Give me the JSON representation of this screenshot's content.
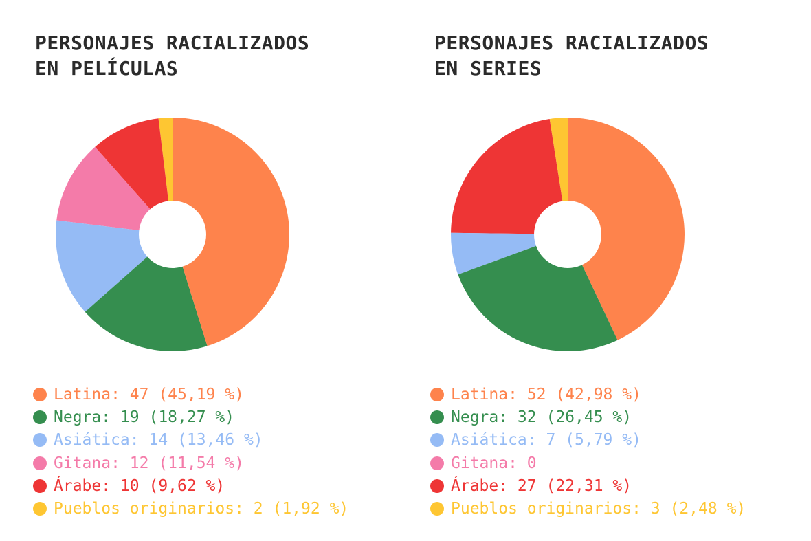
{
  "colors": {
    "Latina": "#fe834c",
    "Negra": "#358e4f",
    "Asiática": "#95bbf5",
    "Gitana": "#f47ba9",
    "Árabe": "#ee3535",
    "Pueblos originarios": "#fec632"
  },
  "chart_data": [
    {
      "type": "pie",
      "style": "donut",
      "title": [
        "PERSONAJES RACIALIZADOS",
        "EN PELÍCULAS"
      ],
      "categories": [
        "Latina",
        "Negra",
        "Asiática",
        "Gitana",
        "Árabe",
        "Pueblos originarios"
      ],
      "values": [
        47,
        19,
        14,
        12,
        10,
        2
      ],
      "legend_labels": [
        "Latina: 47 (45,19 %)",
        "Negra: 19 (18,27 %)",
        "Asiática: 14 (13,46 %)",
        "Gitana: 12 (11,54 %)",
        "Árabe: 10 (9,62 %)",
        "Pueblos originarios: 2 (1,92 %)"
      ],
      "legend_position": "bottom"
    },
    {
      "type": "pie",
      "style": "donut",
      "title": [
        "PERSONAJES RACIALIZADOS",
        "EN SERIES"
      ],
      "categories": [
        "Latina",
        "Negra",
        "Asiática",
        "Gitana",
        "Árabe",
        "Pueblos originarios"
      ],
      "values": [
        52,
        32,
        7,
        0,
        27,
        3
      ],
      "legend_labels": [
        "Latina: 52 (42,98 %)",
        "Negra: 32 (26,45 %)",
        "Asiática: 7 (5,79 %)",
        "Gitana: 0",
        "Árabe: 27 (22,31 %)",
        "Pueblos originarios: 3 (2,48 %)"
      ],
      "legend_position": "bottom"
    }
  ]
}
